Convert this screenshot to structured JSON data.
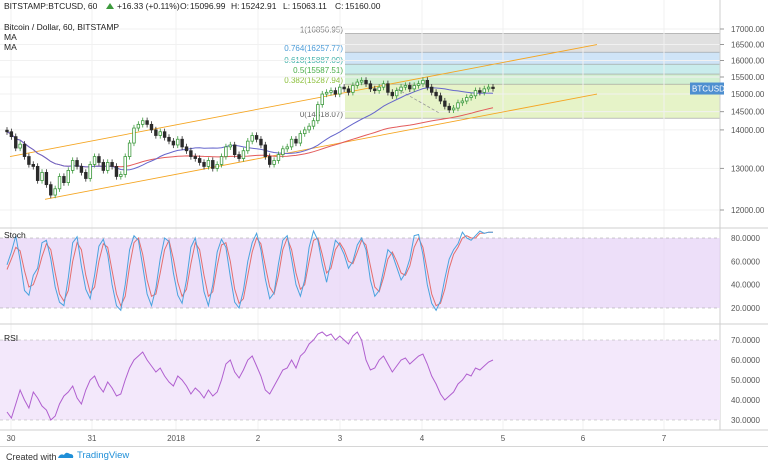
{
  "header": {
    "symbol": "BITSTAMP:BTCUSD, 60",
    "o_label": "O:",
    "o_value": "15096.99",
    "h_label": "H:",
    "h_value": "15242.91",
    "l_label": "L:",
    "l_value": "15063.11",
    "c_label": "C:",
    "c_value": "15160.00",
    "change": "+16.33 (+0.11%)"
  },
  "legend": {
    "line1": "Bitcoin / Dollar, 60, BITSTAMP",
    "line2": "MA",
    "line3": "MA"
  },
  "colors": {
    "up": "#3d9a3d",
    "down": "#2b2b2b",
    "ma1": "#e35b5b",
    "ma2": "#6666cc",
    "channel": "#f5a623",
    "stoch_k": "#4aa3df",
    "stoch_d": "#e46e6e",
    "stoch_bg": "#e6d2f7",
    "rsi_line": "#b05fcf",
    "rsi_bg": "#f3e8fb",
    "fib_grey": "#e0e0e0",
    "fib_blue": "#cfe4f7",
    "fib_teal": "#c9ecec",
    "fib_green": "#d2f0d2",
    "fib_lime": "#e6f3c8",
    "price_label": "#4e8fd0"
  },
  "chart_data": {
    "type": "candlestick",
    "title": "Bitcoin / Dollar, 60, BITSTAMP",
    "price_axis": {
      "ticks": [
        "17000.00",
        "16500.00",
        "16000.00",
        "15500.00",
        "15000.00",
        "14500.00",
        "14000.00",
        "13000.00",
        "12000.00"
      ],
      "log_scale": true
    },
    "current_price_label": "BTCUSD",
    "fibonacci": [
      {
        "level": "1(16856.95)",
        "value": 16856.95
      },
      {
        "level": "0.764(16257.77)",
        "value": 16257.77
      },
      {
        "level": "0.618(15887.09)",
        "value": 15887.09
      },
      {
        "level": "0.5(15587.51)",
        "value": 15587.51
      },
      {
        "level": "0.382(15287.94)",
        "value": 15287.94
      },
      {
        "level": "0(14318.07)",
        "value": 14318.07
      }
    ],
    "x_ticks": [
      "30",
      "31",
      "2018",
      "2",
      "3",
      "4",
      "5",
      "6",
      "7"
    ],
    "close": [
      13950,
      13820,
      13520,
      13620,
      13300,
      13100,
      13050,
      12700,
      12900,
      12600,
      12350,
      12500,
      12800,
      12650,
      12950,
      13200,
      13050,
      12900,
      12750,
      13100,
      13300,
      13150,
      12950,
      13150,
      13050,
      12800,
      12850,
      13300,
      13650,
      14050,
      14150,
      14250,
      14150,
      14000,
      13850,
      13950,
      13800,
      13700,
      13600,
      13750,
      13550,
      13450,
      13300,
      13250,
      13150,
      13050,
      13200,
      13000,
      13100,
      13300,
      13550,
      13600,
      13350,
      13250,
      13450,
      13700,
      13850,
      13750,
      13600,
      13300,
      13100,
      13200,
      13350,
      13500,
      13550,
      13750,
      13650,
      13900,
      14000,
      14100,
      14250,
      14700,
      15000,
      15050,
      15100,
      15000,
      15200,
      15150,
      15050,
      15250,
      15350,
      15400,
      15300,
      15150,
      15100,
      15200,
      15300,
      15050,
      14950,
      15100,
      15200,
      15250,
      15150,
      15250,
      15300,
      15400,
      15200,
      15050,
      14950,
      14800,
      14650,
      14550,
      14600,
      14750,
      14800,
      14900,
      14950,
      15100,
      15050,
      15150,
      15200,
      15160
    ],
    "stoch": {
      "k_values": [
        57,
        68,
        82,
        61,
        35,
        31,
        48,
        54,
        76,
        78,
        62,
        38,
        25,
        22,
        46,
        76,
        81,
        56,
        36,
        28,
        48,
        73,
        79,
        66,
        40,
        22,
        18,
        40,
        70,
        82,
        78,
        56,
        32,
        22,
        37,
        62,
        80,
        77,
        50,
        31,
        24,
        44,
        72,
        80,
        60,
        34,
        22,
        40,
        68,
        79,
        72,
        47,
        25,
        20,
        35,
        60,
        76,
        84,
        70,
        45,
        28,
        33,
        58,
        78,
        82,
        62,
        40,
        30,
        44,
        72,
        86,
        78,
        58,
        42,
        60,
        78,
        74,
        66,
        54,
        60,
        74,
        80,
        70,
        44,
        30,
        35,
        52,
        70,
        66,
        55,
        44,
        50,
        62,
        82,
        83,
        66,
        40,
        24,
        18,
        26,
        45,
        62,
        70,
        75,
        85,
        80,
        78,
        82,
        86,
        84,
        85,
        85
      ],
      "d_values": [
        53,
        62,
        72,
        69,
        52,
        38,
        40,
        50,
        64,
        75,
        70,
        50,
        32,
        26,
        35,
        60,
        76,
        70,
        48,
        33,
        38,
        60,
        75,
        72,
        52,
        32,
        22,
        30,
        56,
        76,
        80,
        66,
        44,
        30,
        32,
        50,
        70,
        78,
        62,
        42,
        30,
        36,
        58,
        76,
        70,
        48,
        30,
        34,
        56,
        74,
        76,
        60,
        36,
        24,
        28,
        48,
        68,
        80,
        75,
        56,
        38,
        32,
        48,
        70,
        80,
        70,
        50,
        36,
        40,
        60,
        78,
        80,
        66,
        50,
        54,
        70,
        76,
        70,
        60,
        58,
        68,
        78,
        74,
        56,
        38,
        34,
        46,
        62,
        68,
        60,
        50,
        48,
        56,
        72,
        80,
        72,
        52,
        32,
        22,
        24,
        36,
        54,
        66,
        72,
        80,
        82,
        80,
        80,
        84,
        84,
        85,
        85
      ],
      "ticks": [
        "80.0000",
        "60.0000",
        "40.0000",
        "20.0000"
      ],
      "title": "Stoch"
    },
    "rsi": {
      "values": [
        34,
        31,
        38,
        45,
        40,
        36,
        44,
        41,
        37,
        35,
        30,
        32,
        38,
        42,
        44,
        47,
        41,
        38,
        45,
        50,
        52,
        47,
        44,
        49,
        46,
        42,
        43,
        50,
        56,
        60,
        62,
        64,
        60,
        57,
        54,
        56,
        52,
        49,
        47,
        52,
        50,
        47,
        43,
        46,
        44,
        41,
        45,
        42,
        44,
        50,
        58,
        60,
        54,
        51,
        55,
        60,
        62,
        57,
        52,
        45,
        43,
        47,
        51,
        55,
        56,
        60,
        56,
        62,
        64,
        68,
        70,
        73,
        74,
        72,
        73,
        70,
        72,
        70,
        68,
        72,
        74,
        70,
        60,
        55,
        56,
        60,
        62,
        58,
        54,
        57,
        60,
        61,
        58,
        60,
        62,
        63,
        58,
        52,
        48,
        43,
        40,
        42,
        44,
        48,
        50,
        53,
        52,
        56,
        55,
        57,
        59,
        60
      ],
      "ticks": [
        "70.0000",
        "60.0000",
        "50.0000",
        "40.0000",
        "30.0000"
      ],
      "title": "RSI"
    }
  },
  "footer": {
    "created_with": "Created with",
    "brand": "TradingView"
  }
}
